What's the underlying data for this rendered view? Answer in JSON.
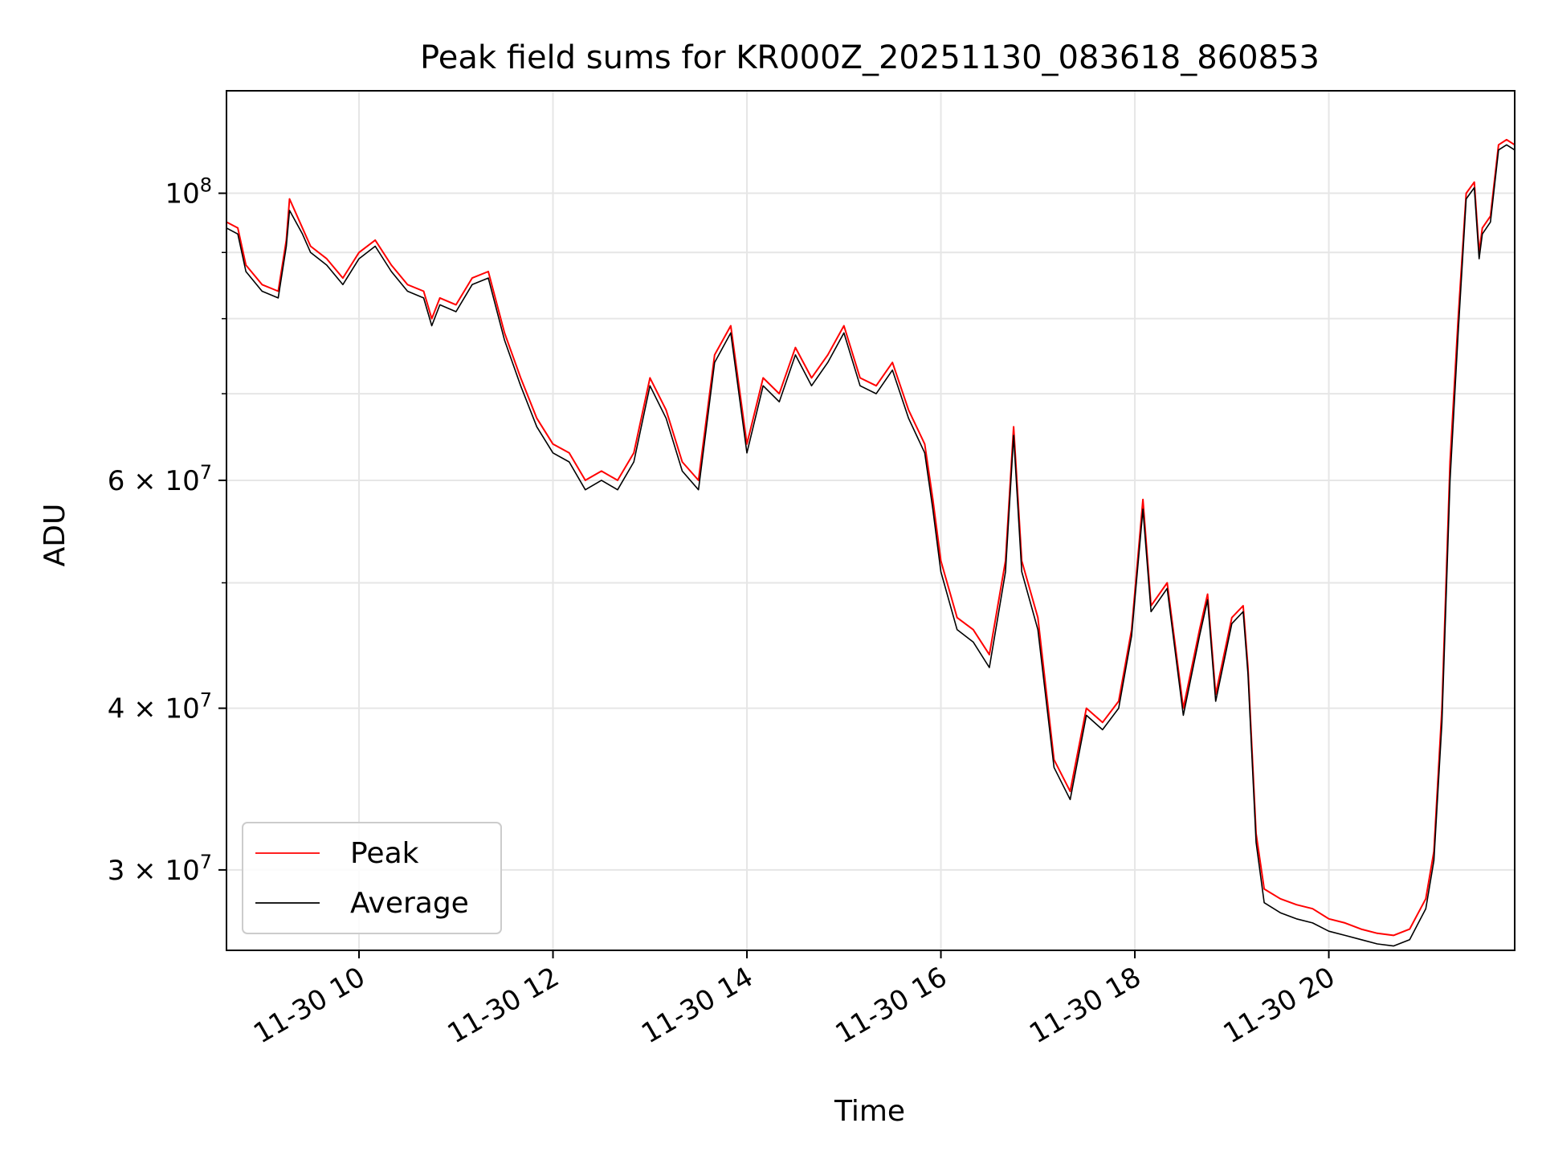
{
  "chart_data": {
    "type": "line",
    "title": "Peak field sums for KR000Z_20251130_083618_860853",
    "xlabel": "Time",
    "ylabel": "ADU",
    "yscale": "log",
    "xlim": [
      "2025-11-30 08:38",
      "2025-11-30 21:55"
    ],
    "ylim": [
      26000000,
      120000000
    ],
    "grid": true,
    "legend": "lower-left",
    "x_ticks": [
      {
        "value": "2025-11-30 10:00",
        "label": "11-30 10"
      },
      {
        "value": "2025-11-30 12:00",
        "label": "11-30 12"
      },
      {
        "value": "2025-11-30 14:00",
        "label": "11-30 14"
      },
      {
        "value": "2025-11-30 16:00",
        "label": "11-30 16"
      },
      {
        "value": "2025-11-30 18:00",
        "label": "11-30 18"
      },
      {
        "value": "2025-11-30 20:00",
        "label": "11-30 20"
      }
    ],
    "y_ticks": [
      {
        "value": 30000000,
        "mant": "3",
        "exp": "7"
      },
      {
        "value": 40000000,
        "mant": "4",
        "exp": "7"
      },
      {
        "value": 60000000,
        "mant": "6",
        "exp": "7"
      },
      {
        "value": 100000000,
        "mant": "10",
        "exp": "8"
      }
    ],
    "y_minor_ticks": [
      50000000,
      70000000,
      80000000,
      90000000
    ],
    "x": [
      "2025-11-30 08:38",
      "2025-11-30 08:45",
      "2025-11-30 08:50",
      "2025-11-30 09:00",
      "2025-11-30 09:10",
      "2025-11-30 09:15",
      "2025-11-30 09:17",
      "2025-11-30 09:25",
      "2025-11-30 09:30",
      "2025-11-30 09:40",
      "2025-11-30 09:50",
      "2025-11-30 10:00",
      "2025-11-30 10:10",
      "2025-11-30 10:20",
      "2025-11-30 10:30",
      "2025-11-30 10:40",
      "2025-11-30 10:45",
      "2025-11-30 10:50",
      "2025-11-30 11:00",
      "2025-11-30 11:10",
      "2025-11-30 11:20",
      "2025-11-30 11:30",
      "2025-11-30 11:40",
      "2025-11-30 11:50",
      "2025-11-30 12:00",
      "2025-11-30 12:10",
      "2025-11-30 12:20",
      "2025-11-30 12:30",
      "2025-11-30 12:40",
      "2025-11-30 12:50",
      "2025-11-30 13:00",
      "2025-11-30 13:10",
      "2025-11-30 13:20",
      "2025-11-30 13:30",
      "2025-11-30 13:40",
      "2025-11-30 13:50",
      "2025-11-30 14:00",
      "2025-11-30 14:10",
      "2025-11-30 14:20",
      "2025-11-30 14:30",
      "2025-11-30 14:40",
      "2025-11-30 14:50",
      "2025-11-30 15:00",
      "2025-11-30 15:10",
      "2025-11-30 15:20",
      "2025-11-30 15:30",
      "2025-11-30 15:40",
      "2025-11-30 15:50",
      "2025-11-30 15:55",
      "2025-11-30 16:00",
      "2025-11-30 16:10",
      "2025-11-30 16:20",
      "2025-11-30 16:30",
      "2025-11-30 16:40",
      "2025-11-30 16:45",
      "2025-11-30 16:50",
      "2025-11-30 17:00",
      "2025-11-30 17:10",
      "2025-11-30 17:20",
      "2025-11-30 17:30",
      "2025-11-30 17:40",
      "2025-11-30 17:50",
      "2025-11-30 17:58",
      "2025-11-30 18:05",
      "2025-11-30 18:10",
      "2025-11-30 18:20",
      "2025-11-30 18:30",
      "2025-11-30 18:40",
      "2025-11-30 18:45",
      "2025-11-30 18:50",
      "2025-11-30 19:00",
      "2025-11-30 19:07",
      "2025-11-30 19:10",
      "2025-11-30 19:15",
      "2025-11-30 19:20",
      "2025-11-30 19:30",
      "2025-11-30 19:40",
      "2025-11-30 19:50",
      "2025-11-30 20:00",
      "2025-11-30 20:10",
      "2025-11-30 20:20",
      "2025-11-30 20:30",
      "2025-11-30 20:40",
      "2025-11-30 20:50",
      "2025-11-30 21:00",
      "2025-11-30 21:05",
      "2025-11-30 21:10",
      "2025-11-30 21:15",
      "2025-11-30 21:20",
      "2025-11-30 21:25",
      "2025-11-30 21:30",
      "2025-11-30 21:33",
      "2025-11-30 21:35",
      "2025-11-30 21:40",
      "2025-11-30 21:45",
      "2025-11-30 21:50",
      "2025-11-30 21:55"
    ],
    "series": [
      {
        "name": "Peak",
        "color": "#ff0000",
        "values": [
          95000000,
          94000000,
          88000000,
          85000000,
          84000000,
          92000000,
          99000000,
          94000000,
          91000000,
          89000000,
          86000000,
          90000000,
          92000000,
          88000000,
          85000000,
          84000000,
          80000000,
          83000000,
          82000000,
          86000000,
          87000000,
          78000000,
          72000000,
          67000000,
          64000000,
          63000000,
          60000000,
          61000000,
          60000000,
          63000000,
          72000000,
          68000000,
          62000000,
          60000000,
          75000000,
          79000000,
          64000000,
          72000000,
          70000000,
          76000000,
          72000000,
          75000000,
          79000000,
          72000000,
          71000000,
          74000000,
          68000000,
          64000000,
          58000000,
          52000000,
          47000000,
          46000000,
          44000000,
          52000000,
          66000000,
          52000000,
          47000000,
          36500000,
          34500000,
          40000000,
          39000000,
          40500000,
          46000000,
          58000000,
          48000000,
          50000000,
          40000000,
          46000000,
          49000000,
          41000000,
          47000000,
          48000000,
          43000000,
          32000000,
          29000000,
          28500000,
          28200000,
          28000000,
          27500000,
          27300000,
          27000000,
          26800000,
          26700000,
          27000000,
          28500000,
          31000000,
          40000000,
          62000000,
          80000000,
          100000000,
          102000000,
          90000000,
          94000000,
          96000000,
          109000000,
          110000000,
          109000000
        ]
      },
      {
        "name": "Average",
        "color": "#000000",
        "values": [
          94000000,
          93000000,
          87000000,
          84000000,
          83000000,
          91000000,
          97000000,
          93000000,
          90000000,
          88000000,
          85000000,
          89000000,
          91000000,
          87000000,
          84000000,
          83000000,
          79000000,
          82000000,
          81000000,
          85000000,
          86000000,
          77000000,
          71000000,
          66000000,
          63000000,
          62000000,
          59000000,
          60000000,
          59000000,
          62000000,
          71000000,
          67000000,
          61000000,
          59000000,
          74000000,
          78000000,
          63000000,
          71000000,
          69000000,
          75000000,
          71000000,
          74000000,
          78000000,
          71000000,
          70000000,
          73000000,
          67000000,
          63000000,
          57000000,
          51000000,
          46000000,
          45000000,
          43000000,
          51000000,
          65000000,
          51000000,
          46000000,
          36000000,
          34000000,
          39500000,
          38500000,
          40000000,
          45500000,
          57000000,
          47500000,
          49500000,
          39500000,
          45500000,
          48500000,
          40500000,
          46500000,
          47500000,
          42500000,
          31500000,
          28300000,
          27800000,
          27500000,
          27300000,
          26900000,
          26700000,
          26500000,
          26300000,
          26200000,
          26500000,
          28000000,
          30500000,
          39000000,
          60000000,
          78000000,
          99000000,
          101000000,
          89000000,
          93000000,
          95000000,
          108000000,
          109000000,
          108000000
        ]
      }
    ]
  }
}
